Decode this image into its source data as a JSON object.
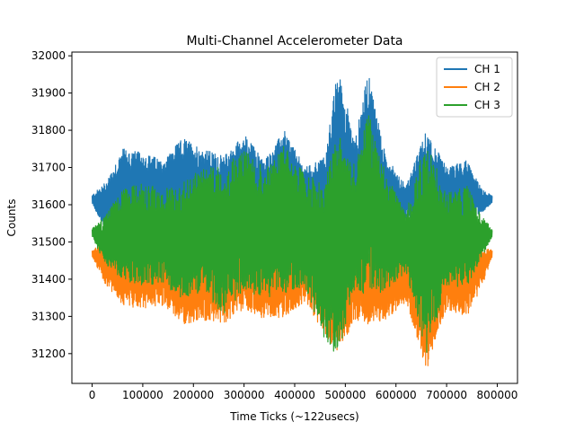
{
  "chart_data": {
    "type": "line",
    "title": "Multi-Channel Accelerometer Data",
    "xlabel": "Time Ticks (~122usecs)",
    "ylabel": "Counts",
    "xlim": [
      -40000,
      840000
    ],
    "ylim": [
      31120,
      32010
    ],
    "xticks": [
      0,
      100000,
      200000,
      300000,
      400000,
      500000,
      600000,
      700000,
      800000
    ],
    "yticks": [
      31200,
      31300,
      31400,
      31500,
      31600,
      31700,
      31800,
      31900,
      32000
    ],
    "legend_position": "upper-right",
    "grid": false,
    "series": [
      {
        "name": "CH 1",
        "color": "#1f77b4",
        "x": [
          0,
          25000,
          60000,
          100000,
          140000,
          180000,
          220000,
          260000,
          300000,
          340000,
          380000,
          420000,
          460000,
          485000,
          520000,
          545000,
          580000,
          620000,
          660000,
          700000,
          740000,
          770000,
          790000
        ],
        "upper": [
          31625,
          31660,
          31750,
          31740,
          31720,
          31780,
          31750,
          31730,
          31790,
          31720,
          31800,
          31700,
          31730,
          31965,
          31780,
          31955,
          31730,
          31650,
          31800,
          31700,
          31720,
          31640,
          31625
        ],
        "lower": [
          31605,
          31530,
          31540,
          31540,
          31550,
          31545,
          31545,
          31550,
          31540,
          31545,
          31550,
          31550,
          31545,
          31500,
          31540,
          31540,
          31550,
          31560,
          31560,
          31555,
          31560,
          31580,
          31605
        ]
      },
      {
        "name": "CH 2",
        "color": "#ff7f0e",
        "x": [
          0,
          25000,
          60000,
          100000,
          140000,
          180000,
          220000,
          260000,
          300000,
          340000,
          380000,
          420000,
          460000,
          485000,
          520000,
          545000,
          580000,
          620000,
          660000,
          700000,
          740000,
          770000,
          790000
        ],
        "upper": [
          31478,
          31500,
          31510,
          31510,
          31510,
          31510,
          31510,
          31510,
          31510,
          31510,
          31510,
          31510,
          31510,
          31520,
          31510,
          31510,
          31510,
          31500,
          31500,
          31500,
          31495,
          31490,
          31478
        ],
        "lower": [
          31460,
          31390,
          31330,
          31320,
          31330,
          31280,
          31290,
          31280,
          31320,
          31290,
          31300,
          31340,
          31250,
          31200,
          31290,
          31280,
          31290,
          31340,
          31150,
          31320,
          31300,
          31380,
          31460
        ]
      },
      {
        "name": "CH 3",
        "color": "#2ca02c",
        "x": [
          0,
          25000,
          60000,
          100000,
          140000,
          180000,
          220000,
          260000,
          300000,
          340000,
          380000,
          420000,
          460000,
          485000,
          520000,
          545000,
          580000,
          620000,
          660000,
          700000,
          740000,
          770000,
          790000
        ],
        "upper": [
          31535,
          31570,
          31640,
          31660,
          31640,
          31660,
          31700,
          31700,
          31750,
          31700,
          31760,
          31680,
          31660,
          31800,
          31700,
          31850,
          31680,
          31580,
          31780,
          31630,
          31650,
          31570,
          31535
        ],
        "lower": [
          31515,
          31440,
          31400,
          31380,
          31390,
          31340,
          31370,
          31300,
          31370,
          31350,
          31360,
          31380,
          31230,
          31190,
          31380,
          31350,
          31370,
          31420,
          31200,
          31380,
          31380,
          31460,
          31515
        ]
      }
    ]
  }
}
